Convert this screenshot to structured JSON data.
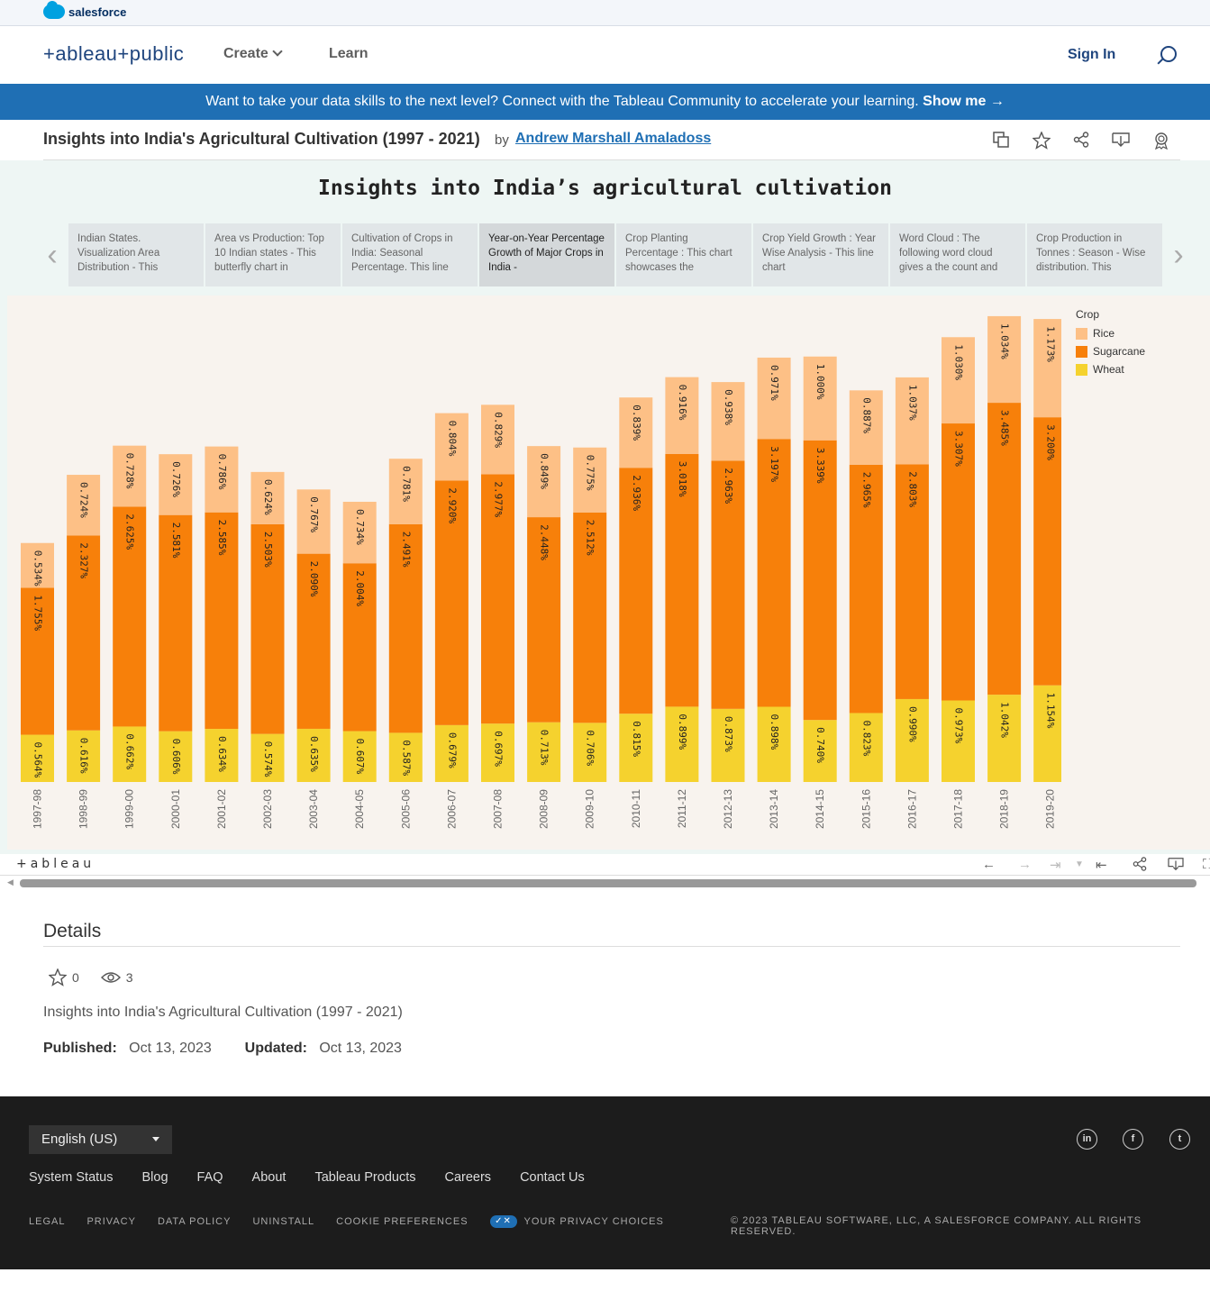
{
  "salesforce_bar": {
    "brand": "salesforce"
  },
  "header": {
    "logo": "+ableau+public",
    "nav": {
      "create": "Create",
      "learn": "Learn"
    },
    "sign_in": "Sign In"
  },
  "banner": {
    "text": "Want to take your data skills to the next level? Connect with the Tableau Community to accelerate your learning.",
    "cta": "Show me →"
  },
  "viz_header": {
    "title": "Insights into India's Agricultural Cultivation (1997 - 2021)",
    "by": "by",
    "author": "Andrew Marshall Amaladoss"
  },
  "dashboard": {
    "title": "Insights into India’s agricultural cultivation",
    "story_points": [
      {
        "text": "Indian States. Visualization Area Distribution - This"
      },
      {
        "text": "Area vs Production: Top 10 Indian states - This butterfly chart in"
      },
      {
        "text": "Cultivation of Crops in India: Seasonal Percentage. This line"
      },
      {
        "text": "Year-on-Year Percentage Growth of Major Crops in India -"
      },
      {
        "text": "Crop Planting Percentage : This chart showcases the"
      },
      {
        "text": "Crop Yield Growth : Year Wise Analysis - This line chart"
      },
      {
        "text": "Word Cloud : The following word cloud gives a the count and"
      },
      {
        "text": "Crop Production in Tonnes : Season - Wise distribution. This"
      }
    ],
    "tableau_logo": "+ableau"
  },
  "chart_data": {
    "type": "bar",
    "stacked": true,
    "title": "",
    "legend_title": "Crop",
    "legend_position": "right",
    "colors": {
      "Rice": "#fdc086",
      "Sugarcane": "#f7800a",
      "Wheat": "#f5d22e"
    },
    "categories": [
      "1997-98",
      "1998-99",
      "1999-00",
      "2000-01",
      "2001-02",
      "2002-03",
      "2003-04",
      "2004-05",
      "2005-06",
      "2006-07",
      "2007-08",
      "2008-09",
      "2009-10",
      "2010-11",
      "2011-12",
      "2012-13",
      "2013-14",
      "2014-15",
      "2015-16",
      "2016-17",
      "2017-18",
      "2018-19",
      "2019-20"
    ],
    "series": [
      {
        "name": "Wheat",
        "values": [
          0.564,
          0.616,
          0.662,
          0.606,
          0.634,
          0.574,
          0.635,
          0.607,
          0.587,
          0.679,
          0.697,
          0.713,
          0.706,
          0.815,
          0.899,
          0.873,
          0.898,
          0.74,
          0.823,
          0.99,
          0.973,
          1.042,
          1.154
        ],
        "labels": [
          "0.564%",
          "0.616%",
          "0.662%",
          "0.606%",
          "0.634%",
          "0.574%",
          "0.635%",
          "0.607%",
          "0.587%",
          "0.679%",
          "0.697%",
          "0.713%",
          "0.706%",
          "0.815%",
          "0.899%",
          "0.873%",
          "0.898%",
          "0.740%",
          "0.823%",
          "0.990%",
          "0.973%",
          "1.042%",
          "1.154%"
        ]
      },
      {
        "name": "Sugarcane",
        "values": [
          1.755,
          2.327,
          2.625,
          2.581,
          2.585,
          2.503,
          2.09,
          2.004,
          2.491,
          2.92,
          2.977,
          2.448,
          2.512,
          2.936,
          3.018,
          2.963,
          3.197,
          3.339,
          2.965,
          2.803,
          3.307,
          3.485,
          3.2
        ],
        "labels": [
          "1.755%",
          "2.327%",
          "2.625%",
          "2.581%",
          "2.585%",
          "2.503%",
          "2.090%",
          "2.004%",
          "2.491%",
          "2.920%",
          "2.977%",
          "2.448%",
          "2.512%",
          "2.936%",
          "3.018%",
          "2.963%",
          "3.197%",
          "3.339%",
          "2.965%",
          "2.803%",
          "3.307%",
          "3.485%",
          "3.200%"
        ]
      },
      {
        "name": "Rice",
        "values": [
          0.534,
          0.724,
          0.728,
          0.726,
          0.786,
          0.624,
          0.767,
          0.734,
          0.781,
          0.804,
          0.829,
          0.849,
          0.775,
          0.839,
          0.916,
          0.938,
          0.971,
          1.0,
          0.887,
          1.037,
          1.03,
          1.034,
          1.173
        ],
        "labels": [
          "0.534%",
          "0.724%",
          "0.728%",
          "0.726%",
          "0.786%",
          "0.624%",
          "0.767%",
          "0.734%",
          "0.781%",
          "0.804%",
          "0.829%",
          "0.849%",
          "0.775%",
          "0.839%",
          "0.916%",
          "0.938%",
          "0.971%",
          "1.000%",
          "0.887%",
          "1.037%",
          "1.030%",
          "1.034%",
          "1.173%"
        ]
      }
    ],
    "ylim": [
      0,
      5.7
    ],
    "grid": false
  },
  "details": {
    "heading": "Details",
    "favorites": "0",
    "views": "3",
    "description": "Insights into India's Agricultural Cultivation (1997 - 2021)",
    "published_label": "Published:",
    "published": "Oct 13, 2023",
    "updated_label": "Updated:",
    "updated": "Oct 13, 2023"
  },
  "footer": {
    "language": "English (US)",
    "social": [
      "in",
      "f",
      "t"
    ],
    "links": [
      "System Status",
      "Blog",
      "FAQ",
      "About",
      "Tableau Products",
      "Careers",
      "Contact Us"
    ],
    "legal": [
      "LEGAL",
      "PRIVACY",
      "DATA POLICY",
      "UNINSTALL",
      "COOKIE PREFERENCES"
    ],
    "privacy_choices": "YOUR PRIVACY CHOICES",
    "copyright": "© 2023 TABLEAU SOFTWARE, LLC, A SALESFORCE COMPANY. ALL RIGHTS RESERVED."
  },
  "icons": {
    "toolbar": [
      "duplicate-icon",
      "star-icon",
      "share-icon",
      "download-icon",
      "badge-icon"
    ],
    "viz_toolbar": [
      "undo-icon",
      "redo-icon",
      "revert-icon",
      "reset-icon",
      "share-icon",
      "download-icon",
      "fullscreen-icon"
    ]
  }
}
